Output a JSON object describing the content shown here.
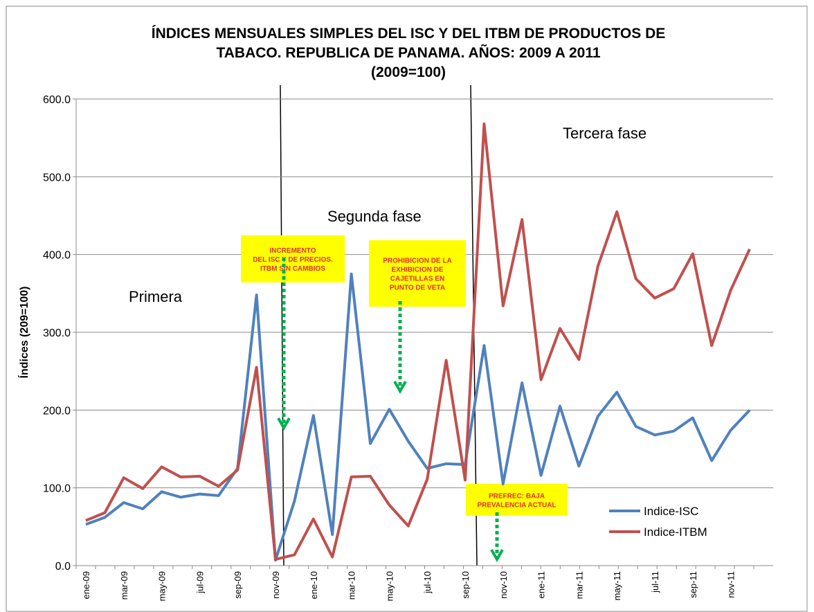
{
  "chart_data": {
    "type": "line",
    "title": [
      "ÍNDICES MENSUALES SIMPLES DEL ISC Y DEL ITBM DE PRODUCTOS DE",
      "TABACO. REPUBLICA DE PANAMA. AÑOS: 2009 A 2011",
      "(2009=100)"
    ],
    "ylabel": "Índices (209=100)",
    "categories": [
      "ene-09",
      null,
      "mar-09",
      null,
      "may-09",
      null,
      "jul-09",
      null,
      "sep-09",
      null,
      "nov-09",
      null,
      "ene-10",
      null,
      "mar-10",
      null,
      "may-10",
      null,
      "jul-10",
      null,
      "sep-10",
      null,
      "nov-10",
      null,
      "ene-11",
      null,
      "mar-11",
      null,
      "may-11",
      null,
      "jul-11",
      null,
      "sep-11",
      null,
      "nov-11",
      null
    ],
    "series": [
      {
        "name": "Indice-ISC",
        "color": "#4f81bd",
        "values": [
          53,
          62,
          81,
          73,
          95,
          88,
          92,
          90,
          125,
          348,
          7,
          83,
          193,
          40,
          375,
          157,
          201,
          160,
          125,
          131,
          130,
          283,
          105,
          235,
          116,
          205,
          128,
          192,
          223,
          179,
          168,
          173,
          190,
          135,
          174,
          200
        ]
      },
      {
        "name": "Indice-ITBM",
        "color": "#c0504d",
        "values": [
          58,
          68,
          113,
          99,
          127,
          114,
          115,
          102,
          123,
          255,
          8,
          14,
          60,
          11,
          114,
          115,
          78,
          51,
          111,
          264,
          110,
          568,
          334,
          445,
          239,
          305,
          265,
          385,
          455,
          369,
          344,
          356,
          401,
          283,
          354,
          407
        ]
      }
    ],
    "ylim": [
      0,
      600
    ],
    "yticks": [
      {
        "value": 0,
        "label": "0.0"
      },
      {
        "value": 100,
        "label": "100.0"
      },
      {
        "value": 200,
        "label": "200.0"
      },
      {
        "value": 300,
        "label": "300.0"
      },
      {
        "value": 400,
        "label": "400.0"
      },
      {
        "value": 500,
        "label": "500.0"
      },
      {
        "value": 600,
        "label": "600.0"
      }
    ],
    "grid": true,
    "legend": "lower right",
    "annotations": [
      "Primera",
      "Segunda fase",
      "Tercera fase"
    ],
    "callouts": [
      [
        "INCREMENTO",
        "DEL ISC Y DE PRECIOS.",
        "ITBM SIN CAMBIOS"
      ],
      [
        "PROHIBICION DE LA",
        "EXHIBICION DE",
        "CAJETILLAS EN",
        "PUNTO DE VETA"
      ],
      [
        "PREFREC: BAJA",
        "PREVALENCIA  ACTUAL"
      ]
    ]
  }
}
